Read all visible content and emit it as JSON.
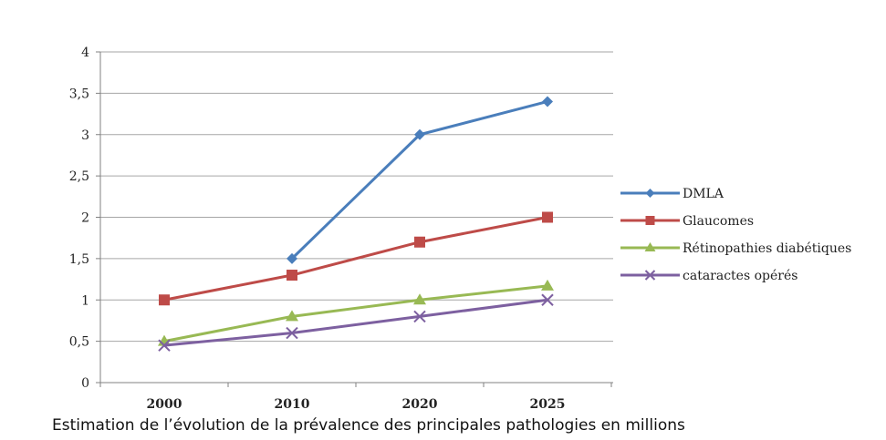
{
  "caption": "Estimation de l’évolution de la prévalence des principales pathologies en millions",
  "chart_data": {
    "type": "line",
    "title": "",
    "xlabel": "",
    "ylabel": "",
    "categories": [
      "2000",
      "2010",
      "2020",
      "2025"
    ],
    "ylim": [
      0,
      4
    ],
    "yticks": [
      "0",
      "0,5",
      "1",
      "1,5",
      "2",
      "2,5",
      "3",
      "3,5",
      "4"
    ],
    "grid": "horizontal",
    "legend": "right",
    "series": [
      {
        "name": "DMLA",
        "values": [
          null,
          1.5,
          3.0,
          3.4
        ],
        "color": "#4a7ebb",
        "marker": "diamond"
      },
      {
        "name": "Glaucomes",
        "values": [
          1.0,
          1.3,
          1.7,
          2.0
        ],
        "color": "#be4b48",
        "marker": "square"
      },
      {
        "name": "Rétinopathies diabétiques",
        "values": [
          0.5,
          0.8,
          1.0,
          1.17
        ],
        "color": "#98b954",
        "marker": "triangle"
      },
      {
        "name": "cataractes opérés",
        "values": [
          0.45,
          0.6,
          0.8,
          1.0
        ],
        "color": "#7d60a0",
        "marker": "x"
      }
    ]
  }
}
